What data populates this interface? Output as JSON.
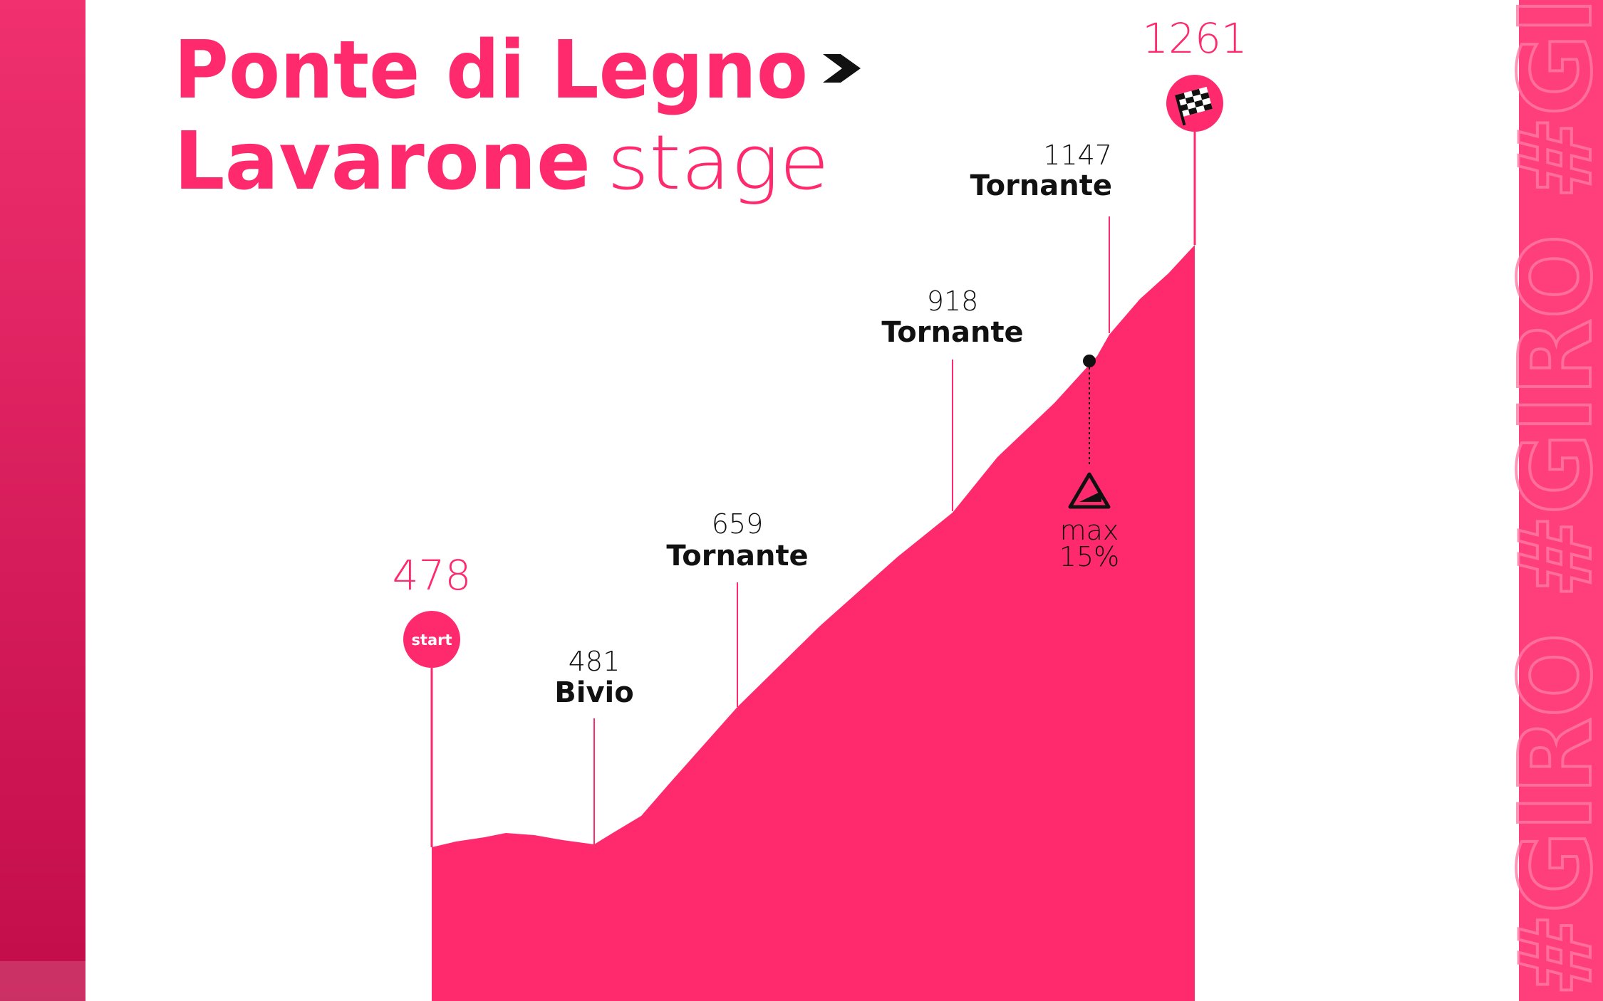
{
  "title": {
    "line1": "Ponte di Legno",
    "line2_bold": "Lavarone",
    "line2_light": "stage"
  },
  "start": {
    "elevation": 478,
    "label": "start"
  },
  "finish": {
    "elevation": 1261
  },
  "waypoints": [
    {
      "elevation": 481,
      "label": "Bivio"
    },
    {
      "elevation": 659,
      "label": "Tornante"
    },
    {
      "elevation": 918,
      "label": "Tornante"
    },
    {
      "elevation": 1147,
      "label": "Tornante"
    }
  ],
  "max_gradient": {
    "label": "max",
    "value": "15%"
  },
  "watermark": "#GIRO #GIRO #GI"
}
